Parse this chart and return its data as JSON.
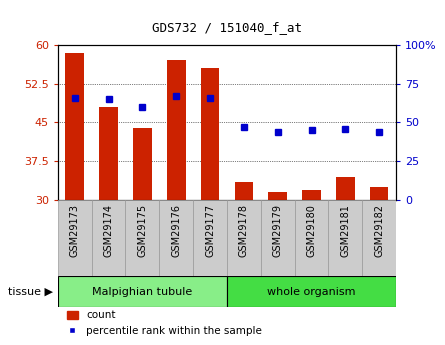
{
  "title": "GDS732 / 151040_f_at",
  "samples": [
    "GSM29173",
    "GSM29174",
    "GSM29175",
    "GSM29176",
    "GSM29177",
    "GSM29178",
    "GSM29179",
    "GSM29180",
    "GSM29181",
    "GSM29182"
  ],
  "count_values": [
    58.5,
    48.0,
    44.0,
    57.0,
    55.5,
    33.5,
    31.5,
    32.0,
    34.5,
    32.5
  ],
  "percentile_values": [
    66,
    65,
    60,
    67,
    66,
    47,
    44,
    45,
    46,
    44
  ],
  "bar_color": "#cc2200",
  "dot_color": "#0000cc",
  "ylim_left": [
    30,
    60
  ],
  "ylim_right": [
    0,
    100
  ],
  "yticks_left": [
    30,
    37.5,
    45,
    52.5,
    60
  ],
  "yticks_right": [
    0,
    25,
    50,
    75,
    100
  ],
  "groups": [
    {
      "label": "Malpighian tubule",
      "samples": 5,
      "color": "#88ee88"
    },
    {
      "label": "whole organism",
      "samples": 5,
      "color": "#44dd44"
    }
  ],
  "tissue_label": "tissue",
  "legend_count_label": "count",
  "legend_pct_label": "percentile rank within the sample",
  "tick_label_color_left": "#cc2200",
  "tick_label_color_right": "#0000cc",
  "grid_linestyle": "dotted",
  "xlabel_box_color": "#cccccc",
  "bar_bottom": 30,
  "n_samples": 10
}
